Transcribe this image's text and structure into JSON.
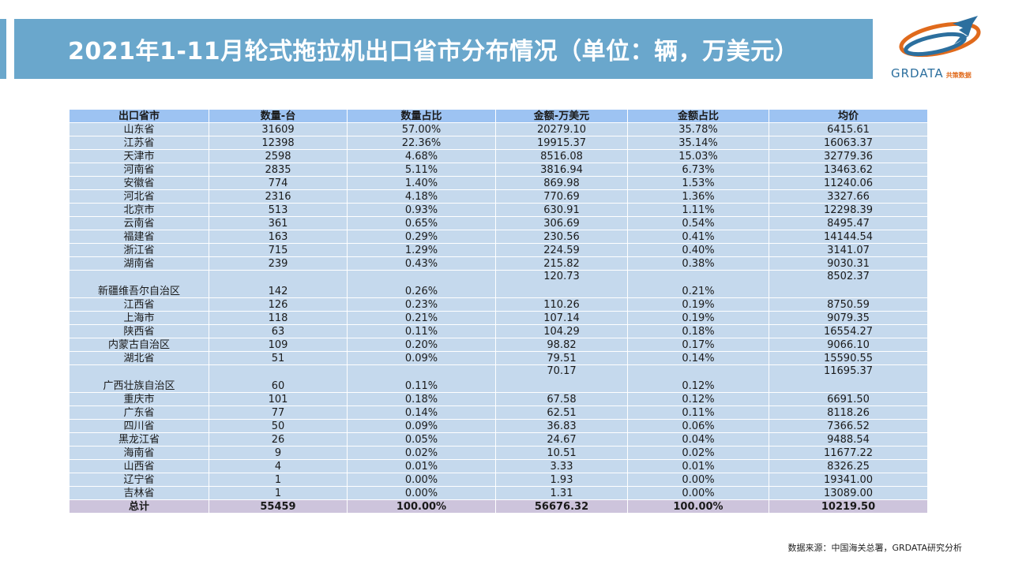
{
  "header": {
    "title": "2021年1-11月轮式拖拉机出口省市分布情况（单位：辆，万美元）"
  },
  "logo": {
    "text": "GRDATA",
    "cn": "共策数据"
  },
  "table": {
    "columns": [
      "出口省市",
      "数量-台",
      "数量占比",
      "金额-万美元",
      "金额占比",
      "均价"
    ],
    "rows": [
      {
        "province": "山东省",
        "qty": "31609",
        "qty_share": "57.00%",
        "amount": "20279.10",
        "amount_share": "35.78%",
        "avg_price": "6415.61"
      },
      {
        "province": "江苏省",
        "qty": "12398",
        "qty_share": "22.36%",
        "amount": "19915.37",
        "amount_share": "35.14%",
        "avg_price": "16063.37"
      },
      {
        "province": "天津市",
        "qty": "2598",
        "qty_share": "4.68%",
        "amount": "8516.08",
        "amount_share": "15.03%",
        "avg_price": "32779.36"
      },
      {
        "province": "河南省",
        "qty": "2835",
        "qty_share": "5.11%",
        "amount": "3816.94",
        "amount_share": "6.73%",
        "avg_price": "13463.62"
      },
      {
        "province": "安徽省",
        "qty": "774",
        "qty_share": "1.40%",
        "amount": "869.98",
        "amount_share": "1.53%",
        "avg_price": "11240.06"
      },
      {
        "province": "河北省",
        "qty": "2316",
        "qty_share": "4.18%",
        "amount": "770.69",
        "amount_share": "1.36%",
        "avg_price": "3327.66"
      },
      {
        "province": "北京市",
        "qty": "513",
        "qty_share": "0.93%",
        "amount": "630.91",
        "amount_share": "1.11%",
        "avg_price": "12298.39"
      },
      {
        "province": "云南省",
        "qty": "361",
        "qty_share": "0.65%",
        "amount": "306.69",
        "amount_share": "0.54%",
        "avg_price": "8495.47"
      },
      {
        "province": "福建省",
        "qty": "163",
        "qty_share": "0.29%",
        "amount": "230.56",
        "amount_share": "0.41%",
        "avg_price": "14144.54"
      },
      {
        "province": "浙江省",
        "qty": "715",
        "qty_share": "1.29%",
        "amount": "224.59",
        "amount_share": "0.40%",
        "avg_price": "3141.07"
      },
      {
        "province": "湖南省",
        "qty": "239",
        "qty_share": "0.43%",
        "amount": "215.82",
        "amount_share": "0.38%",
        "avg_price": "9030.31"
      },
      {
        "province": "新疆维吾尔自治区",
        "qty": "142",
        "qty_share": "0.26%",
        "amount": "120.73",
        "amount_share": "0.21%",
        "avg_price": "8502.37"
      },
      {
        "province": "江西省",
        "qty": "126",
        "qty_share": "0.23%",
        "amount": "110.26",
        "amount_share": "0.19%",
        "avg_price": "8750.59"
      },
      {
        "province": "上海市",
        "qty": "118",
        "qty_share": "0.21%",
        "amount": "107.14",
        "amount_share": "0.19%",
        "avg_price": "9079.35"
      },
      {
        "province": "陕西省",
        "qty": "63",
        "qty_share": "0.11%",
        "amount": "104.29",
        "amount_share": "0.18%",
        "avg_price": "16554.27"
      },
      {
        "province": "内蒙古自治区",
        "qty": "109",
        "qty_share": "0.20%",
        "amount": "98.82",
        "amount_share": "0.17%",
        "avg_price": "9066.10"
      },
      {
        "province": "湖北省",
        "qty": "51",
        "qty_share": "0.09%",
        "amount": "79.51",
        "amount_share": "0.14%",
        "avg_price": "15590.55"
      },
      {
        "province": "广西壮族自治区",
        "qty": "60",
        "qty_share": "0.11%",
        "amount": "70.17",
        "amount_share": "0.12%",
        "avg_price": "11695.37"
      },
      {
        "province": "重庆市",
        "qty": "101",
        "qty_share": "0.18%",
        "amount": "67.58",
        "amount_share": "0.12%",
        "avg_price": "6691.50"
      },
      {
        "province": "广东省",
        "qty": "77",
        "qty_share": "0.14%",
        "amount": "62.51",
        "amount_share": "0.11%",
        "avg_price": "8118.26"
      },
      {
        "province": "四川省",
        "qty": "50",
        "qty_share": "0.09%",
        "amount": "36.83",
        "amount_share": "0.06%",
        "avg_price": "7366.52"
      },
      {
        "province": "黑龙江省",
        "qty": "26",
        "qty_share": "0.05%",
        "amount": "24.67",
        "amount_share": "0.04%",
        "avg_price": "9488.54"
      },
      {
        "province": "海南省",
        "qty": "9",
        "qty_share": "0.02%",
        "amount": "10.51",
        "amount_share": "0.02%",
        "avg_price": "11677.22"
      },
      {
        "province": "山西省",
        "qty": "4",
        "qty_share": "0.01%",
        "amount": "3.33",
        "amount_share": "0.01%",
        "avg_price": "8326.25"
      },
      {
        "province": "辽宁省",
        "qty": "1",
        "qty_share": "0.00%",
        "amount": "1.93",
        "amount_share": "0.00%",
        "avg_price": "19341.00"
      },
      {
        "province": "吉林省",
        "qty": "1",
        "qty_share": "0.00%",
        "amount": "1.31",
        "amount_share": "0.00%",
        "avg_price": "13089.00"
      }
    ],
    "total": {
      "province": "总计",
      "qty": "55459",
      "qty_share": "100.00%",
      "amount": "56676.32",
      "amount_share": "100.00%",
      "avg_price": "10219.50"
    }
  },
  "source": "数据来源：中国海关总署，GRDATA研究分析"
}
